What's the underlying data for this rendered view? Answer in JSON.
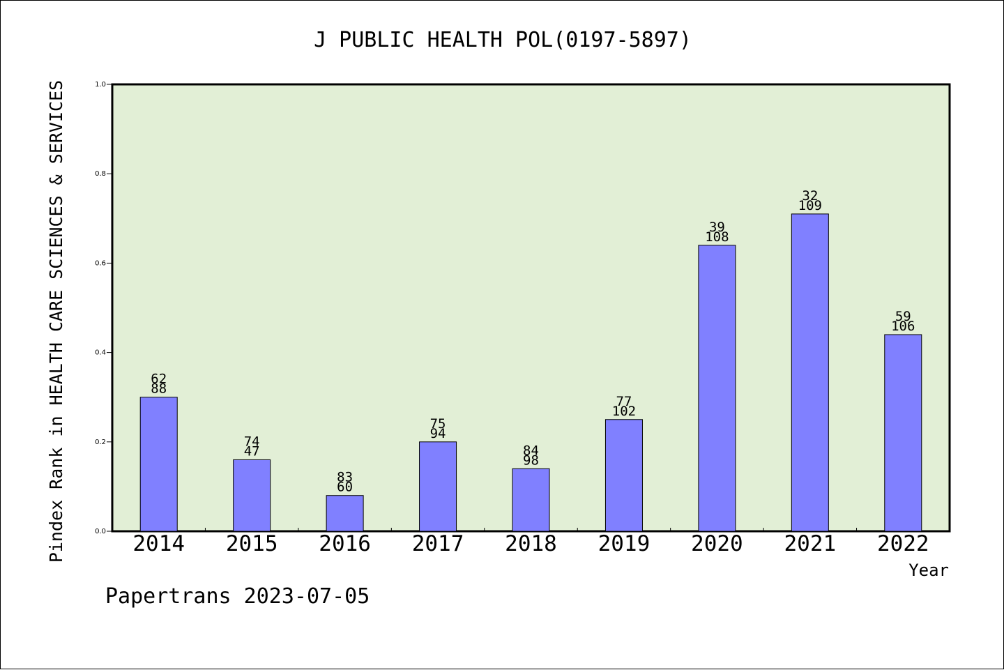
{
  "chart_data": {
    "type": "bar",
    "title": "J PUBLIC HEALTH POL(0197-5897)",
    "xlabel": "Year",
    "ylabel": "Pindex Rank in HEALTH CARE SCIENCES & SERVICES",
    "footer": "Papertrans 2023-07-05",
    "categories": [
      "2014",
      "2015",
      "2016",
      "2017",
      "2018",
      "2019",
      "2020",
      "2021",
      "2022"
    ],
    "values": [
      0.3,
      0.16,
      0.08,
      0.2,
      0.14,
      0.25,
      0.64,
      0.71,
      0.44
    ],
    "label_top": [
      "62",
      "74",
      "83",
      "75",
      "84",
      "77",
      "39",
      "32",
      "59"
    ],
    "label_bottom": [
      "88",
      "47",
      "60",
      "94",
      "98",
      "102",
      "108",
      "109",
      "106"
    ],
    "ylim": [
      0,
      1.0
    ],
    "yticks": [
      "0.0",
      "0.2",
      "0.4",
      "0.6",
      "0.8",
      "1.0"
    ],
    "grid": false,
    "colors": {
      "plot_background": "#e2efd6",
      "bar_fill": "#8080ff",
      "bar_stroke": "#000000"
    }
  }
}
